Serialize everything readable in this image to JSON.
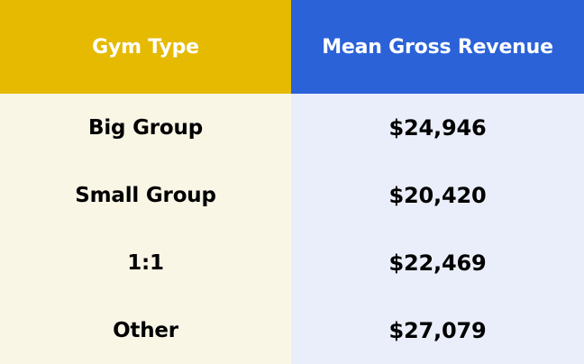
{
  "chart_data": {
    "type": "table",
    "columns": [
      "Gym Type",
      "Mean Gross Revenue"
    ],
    "rows": [
      [
        "Big Group",
        "$24,946"
      ],
      [
        "Small Group",
        "$20,420"
      ],
      [
        "1:1",
        "$22,469"
      ],
      [
        "Other",
        "$27,079"
      ]
    ],
    "values": [
      24946,
      20420,
      22469,
      27079
    ],
    "header_colors": [
      "#E5BA00",
      "#2B62D8"
    ],
    "body_colors": [
      "#FAF6E6",
      "#EAEEFA"
    ]
  }
}
